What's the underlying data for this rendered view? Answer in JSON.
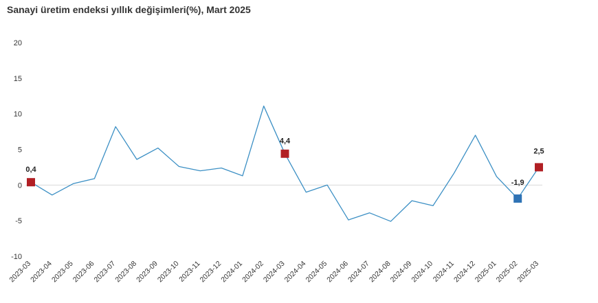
{
  "chart_data": {
    "type": "line",
    "title": "Sanayi üretim endeksi yıllık değişimleri(%), Mart 2025",
    "xlabel": "",
    "ylabel": "",
    "ylim": [
      -10,
      20
    ],
    "yticks": [
      20,
      15,
      10,
      5,
      0,
      -5,
      -10
    ],
    "grid": false,
    "categories": [
      "2023-03",
      "2023-04",
      "2023-05",
      "2023-06",
      "2023-07",
      "2023-08",
      "2023-09",
      "2023-10",
      "2023-11",
      "2023-12",
      "2024-01",
      "2024-02",
      "2024-03",
      "2024-04",
      "2024-05",
      "2024-06",
      "2024-07",
      "2024-08",
      "2024-09",
      "2024-10",
      "2024-11",
      "2024-12",
      "2025-01",
      "2025-02",
      "2025-03"
    ],
    "series": [
      {
        "values": [
          0.4,
          -1.4,
          0.2,
          0.9,
          8.2,
          3.6,
          5.2,
          2.6,
          2.0,
          2.4,
          1.3,
          11.1,
          4.4,
          -1.0,
          0.0,
          -4.9,
          -3.9,
          -5.1,
          -2.2,
          -2.9,
          1.7,
          7.0,
          1.2,
          -1.9,
          2.5
        ],
        "color": "#3b8fc4"
      }
    ],
    "highlighted_points": [
      {
        "index": 0,
        "label": "0,4",
        "color": "#b11f24"
      },
      {
        "index": 12,
        "label": "4,4",
        "color": "#b11f24"
      },
      {
        "index": 23,
        "label": "-1,9",
        "color": "#2f73b5"
      },
      {
        "index": 24,
        "label": "2,5",
        "color": "#b11f24"
      }
    ]
  }
}
